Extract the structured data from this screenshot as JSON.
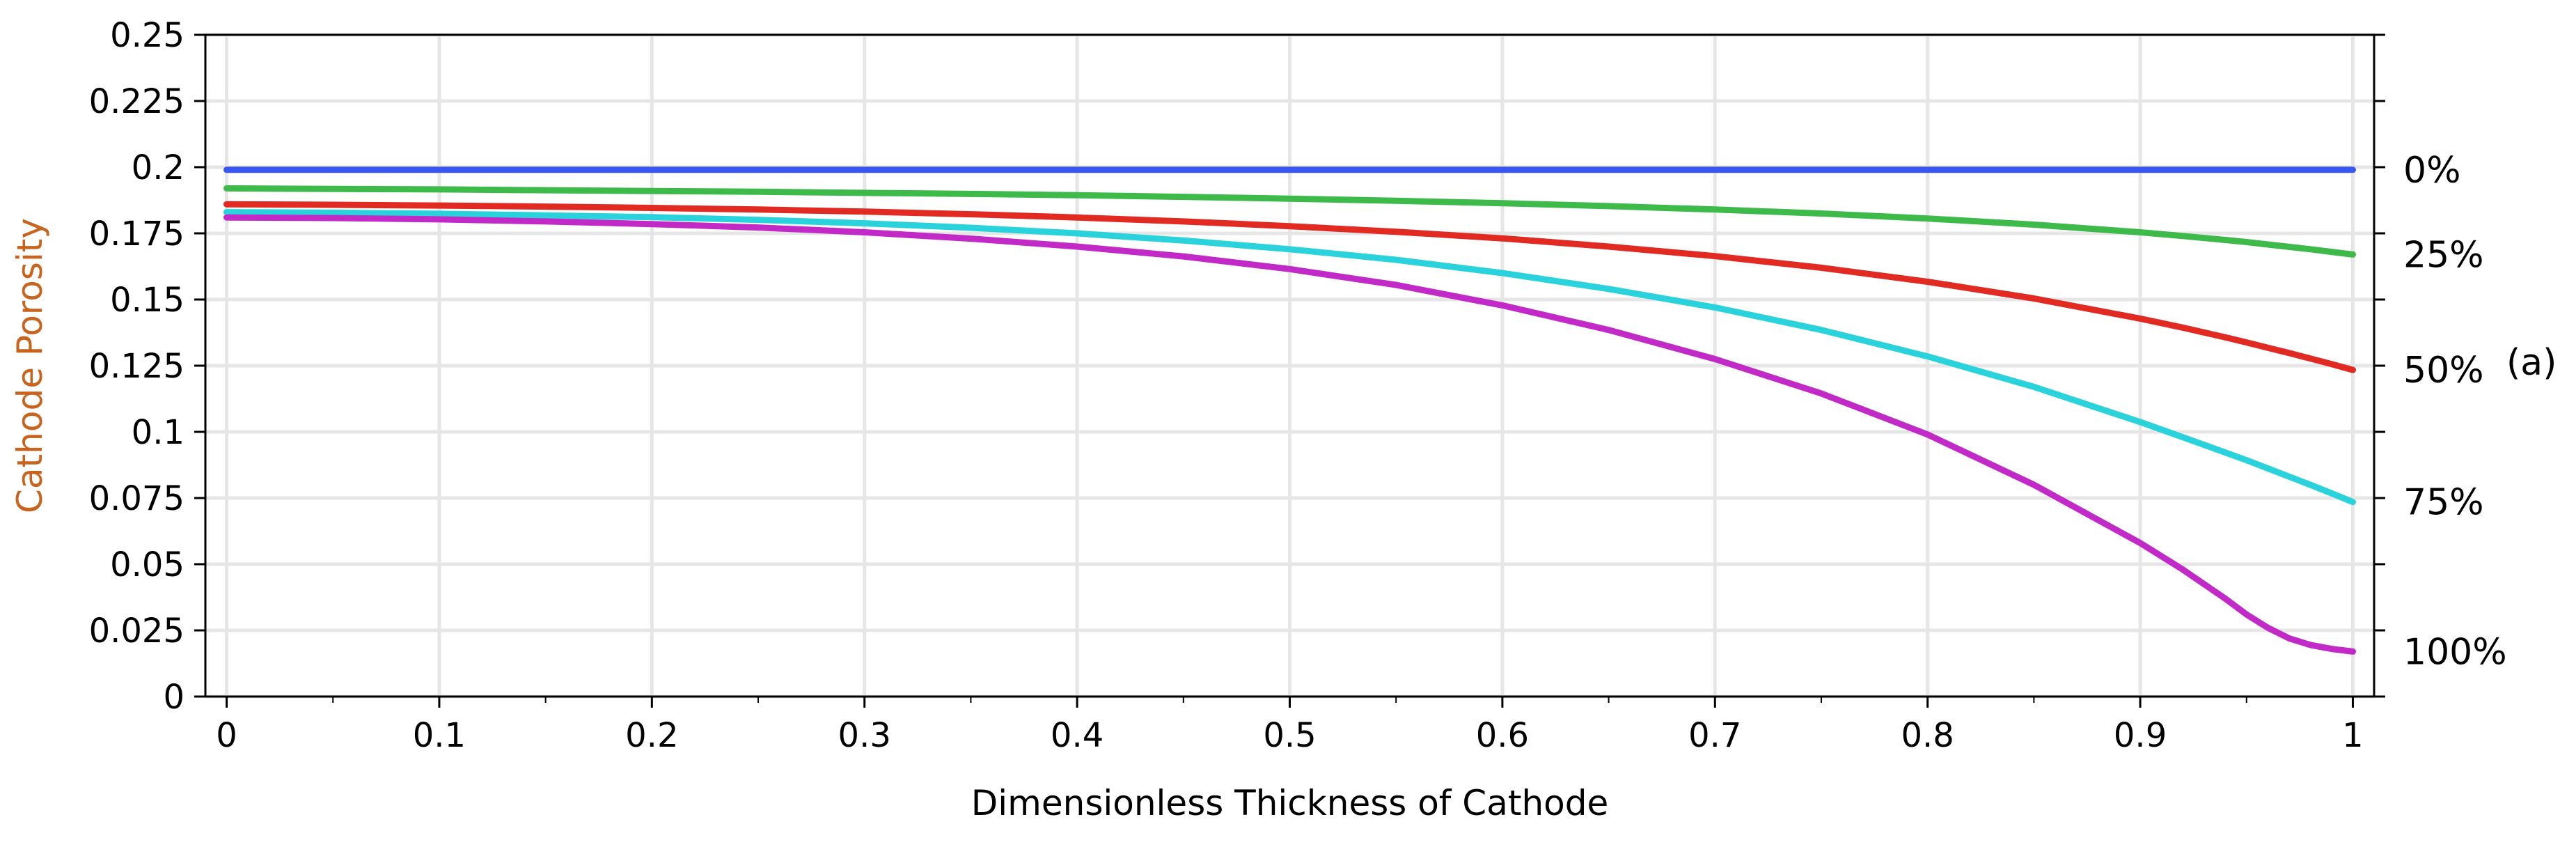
{
  "chart_data": {
    "type": "line",
    "title": "",
    "xlabel": "Dimensionless Thickness of Cathode",
    "ylabel": "Cathode Porosity",
    "xlim": [
      -0.01,
      1.01
    ],
    "ylim": [
      0,
      0.25
    ],
    "x_ticks": [
      "0",
      "0.1",
      "0.2",
      "0.3",
      "0.4",
      "0.5",
      "0.6",
      "0.7",
      "0.8",
      "0.9",
      "1"
    ],
    "x_tick_values": [
      0,
      0.1,
      0.2,
      0.3,
      0.4,
      0.5,
      0.6,
      0.7,
      0.8,
      0.9,
      1
    ],
    "y_ticks": [
      "0",
      "0.025",
      "0.05",
      "0.075",
      "0.1",
      "0.125",
      "0.15",
      "0.175",
      "0.2",
      "0.225",
      "0.25"
    ],
    "y_tick_values": [
      0,
      0.025,
      0.05,
      0.075,
      0.1,
      0.125,
      0.15,
      0.175,
      0.2,
      0.225,
      0.25
    ],
    "grid": true,
    "panel_label": "(a)",
    "x": [
      0,
      0.05,
      0.1,
      0.15,
      0.2,
      0.25,
      0.3,
      0.35,
      0.4,
      0.45,
      0.5,
      0.55,
      0.6,
      0.65,
      0.7,
      0.75,
      0.8,
      0.85,
      0.9,
      0.92,
      0.94,
      0.95,
      0.96,
      0.97,
      0.98,
      0.99,
      1.0
    ],
    "series": [
      {
        "name": "0%",
        "end_label": "0%",
        "color": "#3a56f0",
        "values": [
          0.199,
          0.199,
          0.199,
          0.199,
          0.199,
          0.199,
          0.199,
          0.199,
          0.199,
          0.199,
          0.199,
          0.199,
          0.199,
          0.199,
          0.199,
          0.199,
          0.199,
          0.199,
          0.199,
          0.199,
          0.199,
          0.199,
          0.199,
          0.199,
          0.199,
          0.199,
          0.199
        ]
      },
      {
        "name": "25%",
        "end_label": "25%",
        "color": "#3dba4a",
        "values": [
          0.192,
          0.1918,
          0.1916,
          0.1913,
          0.191,
          0.1907,
          0.1903,
          0.1899,
          0.1894,
          0.1888,
          0.1881,
          0.1873,
          0.1864,
          0.1853,
          0.184,
          0.1825,
          0.1806,
          0.1783,
          0.1754,
          0.174,
          0.1725,
          0.1717,
          0.1708,
          0.1699,
          0.169,
          0.168,
          0.167
        ]
      },
      {
        "name": "50%",
        "end_label": "50%",
        "color": "#e02a22",
        "values": [
          0.186,
          0.1858,
          0.1855,
          0.1851,
          0.1846,
          0.184,
          0.1832,
          0.1822,
          0.181,
          0.1795,
          0.1777,
          0.1756,
          0.1731,
          0.17,
          0.1664,
          0.162,
          0.1567,
          0.1504,
          0.1428,
          0.1394,
          0.1357,
          0.1338,
          0.1318,
          0.1298,
          0.1277,
          0.1256,
          0.1234
        ]
      },
      {
        "name": "75%",
        "end_label": "75%",
        "color": "#2ad3dc",
        "values": [
          0.183,
          0.1828,
          0.1824,
          0.1818,
          0.1811,
          0.1801,
          0.1788,
          0.1771,
          0.175,
          0.1723,
          0.169,
          0.165,
          0.16,
          0.154,
          0.147,
          0.1385,
          0.1285,
          0.117,
          0.1037,
          0.098,
          0.0922,
          0.0893,
          0.0862,
          0.0831,
          0.08,
          0.0768,
          0.0735
        ]
      },
      {
        "name": "100%",
        "end_label": "100%",
        "color": "#c22ac8",
        "values": [
          0.181,
          0.1808,
          0.1803,
          0.1795,
          0.1785,
          0.1772,
          0.1754,
          0.173,
          0.17,
          0.1663,
          0.1615,
          0.1555,
          0.1478,
          0.1385,
          0.1275,
          0.1145,
          0.099,
          0.08,
          0.058,
          0.048,
          0.037,
          0.031,
          0.026,
          0.022,
          0.0195,
          0.018,
          0.017
        ]
      }
    ]
  }
}
